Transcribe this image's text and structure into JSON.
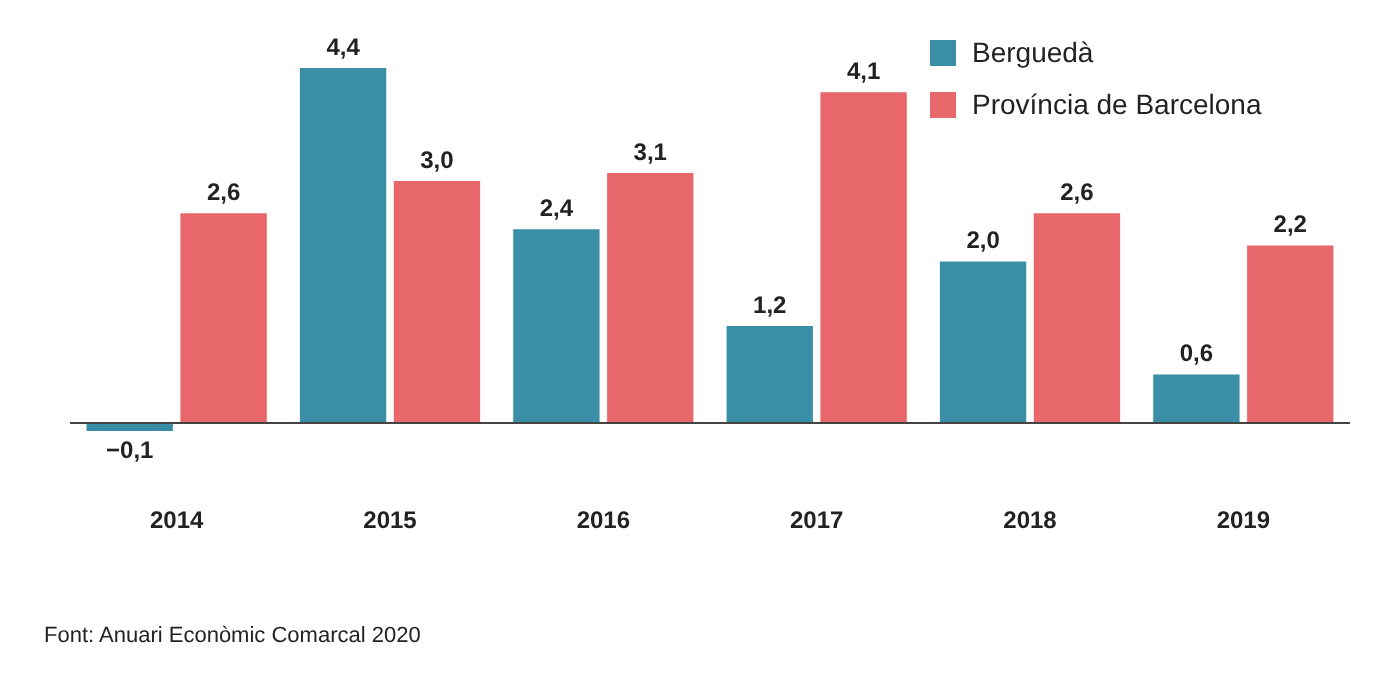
{
  "chart_data": {
    "type": "bar",
    "categories": [
      "2014",
      "2015",
      "2016",
      "2017",
      "2018",
      "2019"
    ],
    "series": [
      {
        "name": "Berguedà",
        "color": "#3a8fa6",
        "values": [
          -0.1,
          4.4,
          2.4,
          1.2,
          2.0,
          0.6
        ],
        "value_labels": [
          "−0,1",
          "4,4",
          "2,4",
          "1,2",
          "2,0",
          "0,6"
        ]
      },
      {
        "name": "Província de Barcelona",
        "color": "#e8676a",
        "values": [
          2.6,
          3.0,
          3.1,
          4.1,
          2.6,
          2.2
        ],
        "value_labels": [
          "2,6",
          "3,0",
          "3,1",
          "4,1",
          "2,6",
          "2,2"
        ]
      }
    ],
    "legend": "top right",
    "grid": false,
    "annotations": [
      "Font: Anuari Econòmic Comarcal 2020"
    ]
  }
}
